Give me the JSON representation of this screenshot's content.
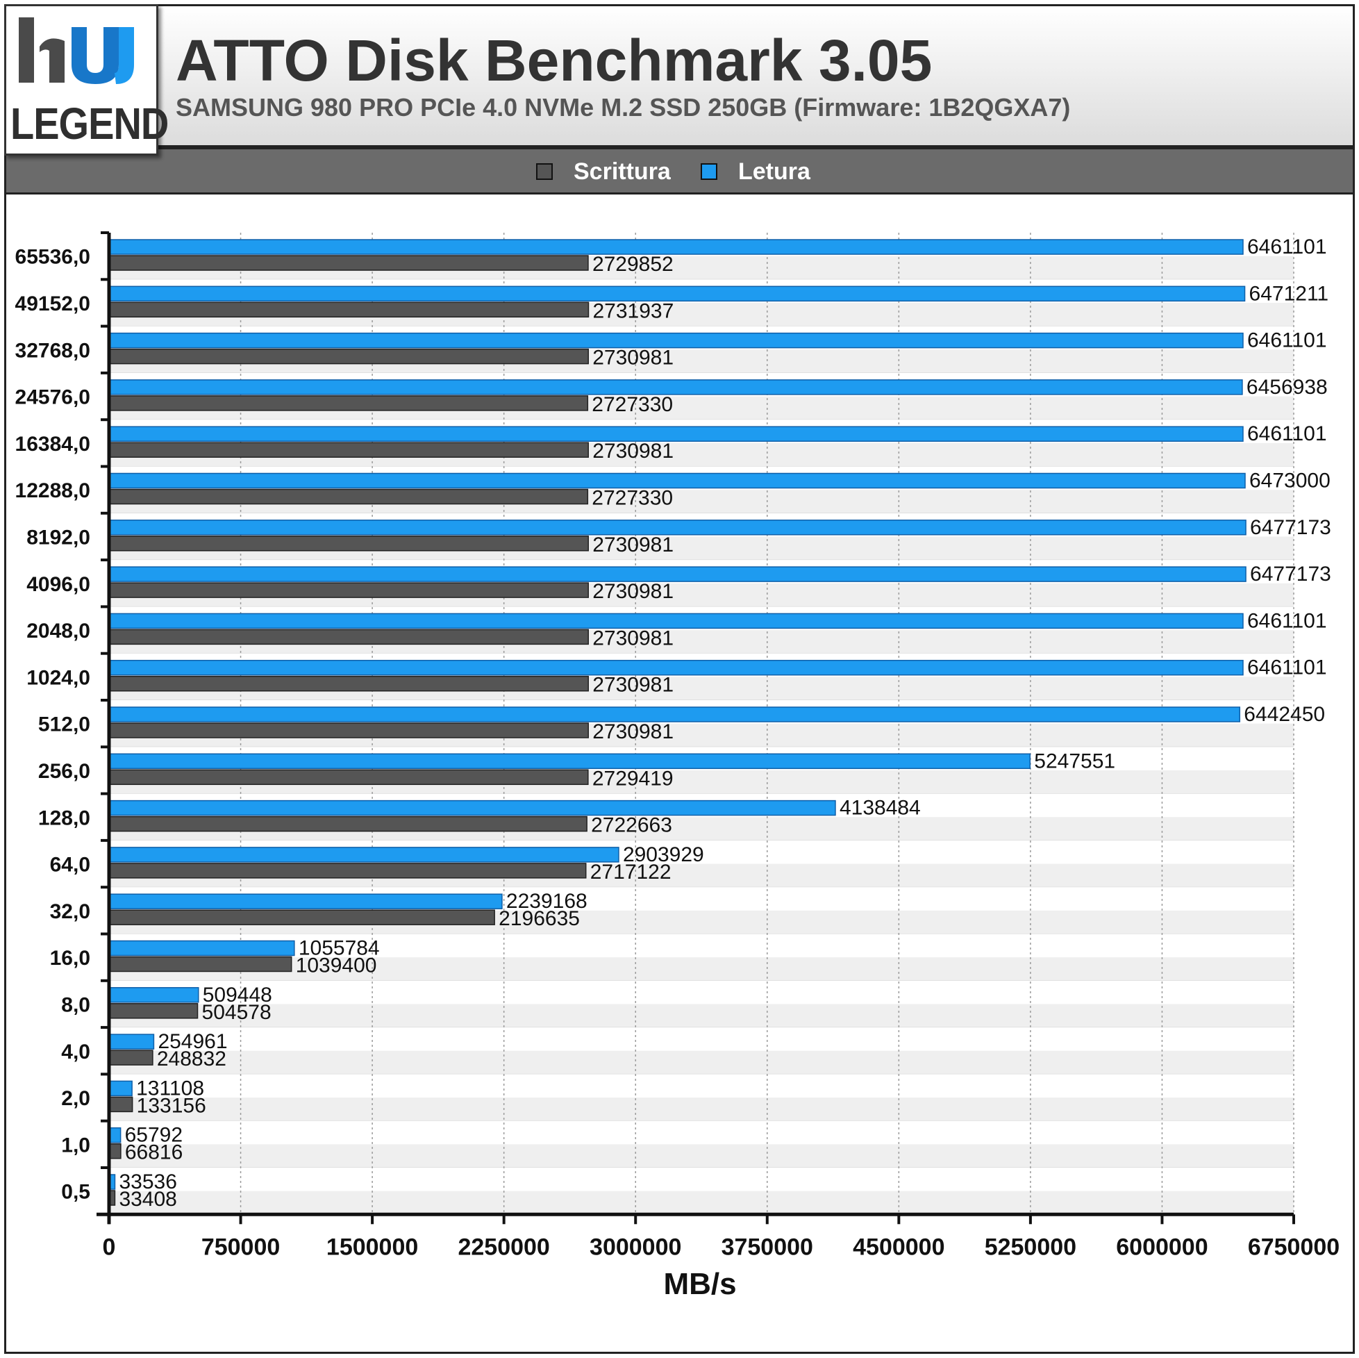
{
  "header": {
    "logo_text": "LEGEND",
    "title": "ATTO Disk Benchmark 3.05",
    "subtitle": "SAMSUNG 980 PRO PCIe 4.0 NVMe M.2 SSD 250GB (Firmware: 1B2QGXA7)"
  },
  "colors": {
    "write": "#555555",
    "read": "#1e9bf0",
    "legend_bar": "#6b6b6b"
  },
  "chart_data": {
    "type": "bar",
    "orientation": "horizontal",
    "title": "ATTO Disk Benchmark 3.05",
    "subtitle": "SAMSUNG 980 PRO PCIe 4.0 NVMe M.2 SSD 250GB (Firmware: 1B2QGXA7)",
    "xlabel": "MB/s",
    "ylabel": "",
    "xlim": [
      0,
      6750000
    ],
    "xticks": [
      "0",
      "750000",
      "1500000",
      "2250000",
      "3000000",
      "3750000",
      "4500000",
      "5250000",
      "6000000",
      "6750000"
    ],
    "grid": true,
    "legend_position": "top",
    "categories": [
      "65536,0",
      "49152,0",
      "32768,0",
      "24576,0",
      "16384,0",
      "12288,0",
      "8192,0",
      "4096,0",
      "2048,0",
      "1024,0",
      "512,0",
      "256,0",
      "128,0",
      "64,0",
      "32,0",
      "16,0",
      "8,0",
      "4,0",
      "2,0",
      "1,0",
      "0,5"
    ],
    "series": [
      {
        "name": "Scrittura",
        "values": [
          2729852,
          2731937,
          2730981,
          2727330,
          2730981,
          2727330,
          2730981,
          2730981,
          2730981,
          2730981,
          2730981,
          2729419,
          2722663,
          2717122,
          2196635,
          1039400,
          504578,
          248832,
          133156,
          66816,
          33408
        ]
      },
      {
        "name": "Letura",
        "values": [
          6461101,
          6471211,
          6461101,
          6456938,
          6461101,
          6473000,
          6477173,
          6477173,
          6461101,
          6461101,
          6442450,
          5247551,
          4138484,
          2903929,
          2239168,
          1055784,
          509448,
          254961,
          131108,
          65792,
          33536
        ]
      }
    ]
  }
}
